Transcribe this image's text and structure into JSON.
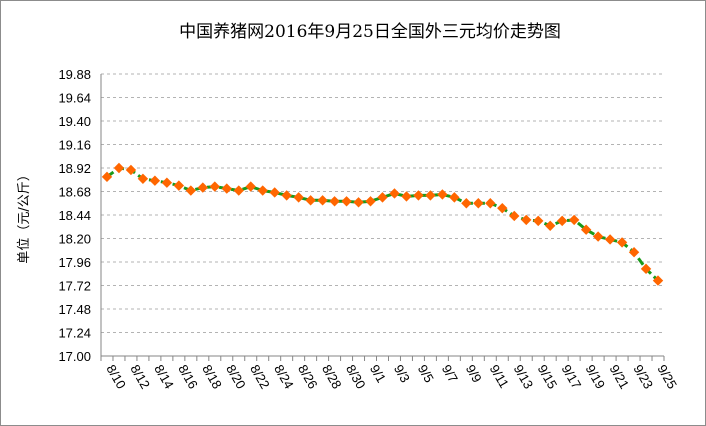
{
  "chart_data": {
    "type": "line",
    "title": "中国养猪网2016年9月25日全国外三元均价走势图",
    "ylabel": "单位（元/公斤）",
    "xlabel": "",
    "ylim": [
      17.0,
      19.88
    ],
    "yticks": [
      "17.00",
      "17.24",
      "17.48",
      "17.72",
      "17.96",
      "18.20",
      "18.44",
      "18.68",
      "18.92",
      "19.16",
      "19.40",
      "19.64",
      "19.88"
    ],
    "x": [
      "8/10",
      "8/11",
      "8/12",
      "8/13",
      "8/14",
      "8/15",
      "8/16",
      "8/17",
      "8/18",
      "8/19",
      "8/20",
      "8/21",
      "8/22",
      "8/23",
      "8/24",
      "8/25",
      "8/26",
      "8/27",
      "8/28",
      "8/29",
      "8/30",
      "8/31",
      "9/1",
      "9/2",
      "9/3",
      "9/4",
      "9/5",
      "9/6",
      "9/7",
      "9/8",
      "9/9",
      "9/10",
      "9/11",
      "9/12",
      "9/13",
      "9/14",
      "9/15",
      "9/16",
      "9/17",
      "9/18",
      "9/19",
      "9/20",
      "9/21",
      "9/22",
      "9/23",
      "9/24",
      "9/25"
    ],
    "xtick_labels": [
      "8/10",
      "8/12",
      "8/14",
      "8/16",
      "8/18",
      "8/20",
      "8/22",
      "8/24",
      "8/26",
      "8/28",
      "8/30",
      "9/1",
      "9/3",
      "9/5",
      "9/7",
      "9/9",
      "9/11",
      "9/13",
      "9/15",
      "9/17",
      "9/19",
      "9/21",
      "9/23",
      "9/25"
    ],
    "series": [
      {
        "values": [
          18.83,
          18.92,
          18.9,
          18.81,
          18.79,
          18.77,
          18.74,
          18.69,
          18.72,
          18.73,
          18.71,
          18.69,
          18.73,
          18.69,
          18.67,
          18.64,
          18.62,
          18.59,
          18.59,
          18.58,
          18.58,
          18.57,
          18.58,
          18.62,
          18.66,
          18.63,
          18.64,
          18.64,
          18.65,
          18.62,
          18.56,
          18.56,
          18.56,
          18.51,
          18.43,
          18.39,
          18.38,
          18.33,
          18.38,
          18.39,
          18.29,
          18.22,
          18.19,
          18.16,
          18.06,
          17.89,
          17.77
        ],
        "line_color": "#1a9a1a",
        "marker_color": "#ff6600"
      }
    ],
    "grid": true,
    "legend": "none"
  }
}
